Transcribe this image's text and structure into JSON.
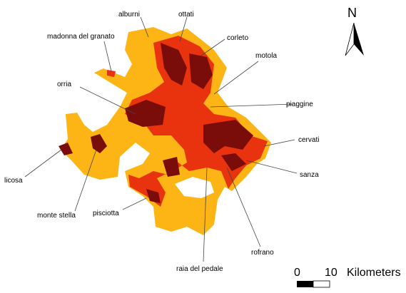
{
  "labels": [
    "alburni",
    "ottati",
    "corleto",
    "madonna del granato",
    "motola",
    "orria",
    "piaggine",
    "cervati",
    "licosa",
    "sanza",
    "monte stella",
    "pisciotta",
    "rofrano",
    "raia del pedale"
  ],
  "north": "N",
  "scale_bar": {
    "start": "0",
    "end": "10",
    "unit": "Kilometers"
  }
}
